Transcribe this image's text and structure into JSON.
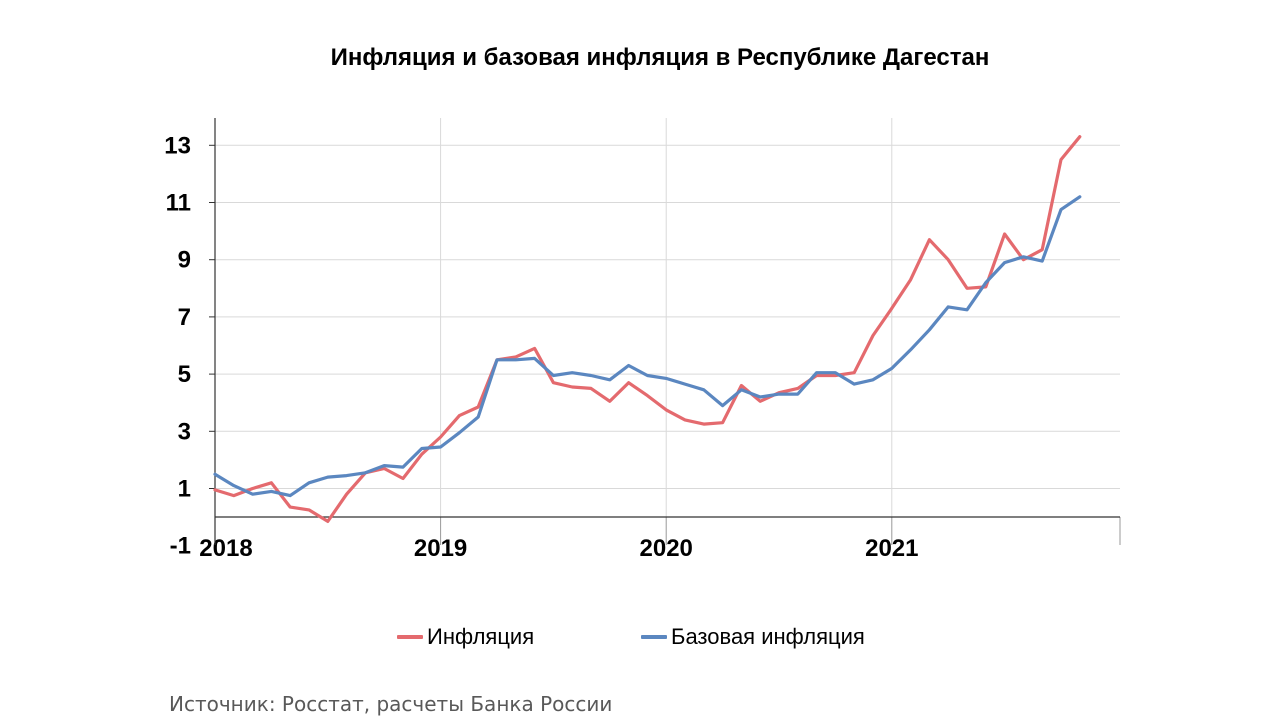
{
  "chart_data": {
    "type": "line",
    "title": "Инфляция и базовая инфляция в Республике Дагестан",
    "xlabel": "",
    "ylabel": "",
    "ylim": [
      -1,
      14
    ],
    "y_ticks": [
      -1,
      1,
      3,
      5,
      7,
      9,
      11,
      13
    ],
    "y_tick_labels": [
      "-1",
      "1",
      "3",
      "5",
      "7",
      "9",
      "11",
      "13"
    ],
    "x_tick_labels": [
      "2018",
      "2019",
      "2020",
      "2021"
    ],
    "x_start_year": 2018,
    "months_per_year": 12,
    "grid": true,
    "legend_position": "bottom",
    "series": [
      {
        "name": "Инфляция",
        "color": "#e46a6e",
        "values": [
          0.95,
          0.75,
          1.0,
          1.2,
          0.35,
          0.25,
          -0.15,
          0.8,
          1.55,
          1.7,
          1.35,
          2.2,
          2.8,
          3.55,
          3.85,
          5.5,
          5.6,
          5.9,
          4.7,
          4.55,
          4.5,
          4.05,
          4.7,
          4.25,
          3.75,
          3.4,
          3.25,
          3.3,
          4.6,
          4.05,
          4.35,
          4.5,
          4.95,
          4.95,
          5.05,
          6.35,
          7.3,
          8.3,
          9.7,
          9.0,
          8.0,
          8.05,
          9.9,
          9.0,
          9.35,
          12.5,
          13.3
        ]
      },
      {
        "name": "Базовая инфляция",
        "color": "#5b87c0",
        "values": [
          1.5,
          1.1,
          0.8,
          0.9,
          0.75,
          1.2,
          1.4,
          1.45,
          1.55,
          1.8,
          1.75,
          2.4,
          2.45,
          2.95,
          3.5,
          5.5,
          5.5,
          5.55,
          4.95,
          5.05,
          4.95,
          4.8,
          5.3,
          4.95,
          4.85,
          4.65,
          4.45,
          3.9,
          4.45,
          4.2,
          4.3,
          4.3,
          5.05,
          5.05,
          4.65,
          4.8,
          5.2,
          5.85,
          6.55,
          7.35,
          7.25,
          8.2,
          8.9,
          9.1,
          8.95,
          10.75,
          11.2
        ]
      }
    ]
  },
  "source": "Источник: Росстат, расчеты Банка России"
}
